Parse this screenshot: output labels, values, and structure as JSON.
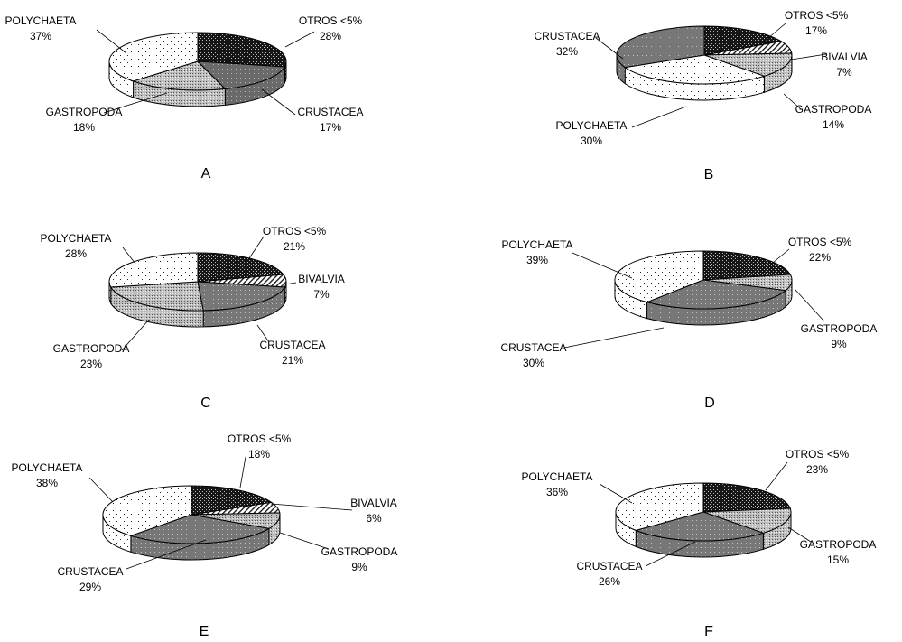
{
  "chart_data": [
    {
      "panel": "A",
      "type": "pie",
      "slices": [
        {
          "name": "OTROS <5%",
          "value": 28,
          "value_label": "28%",
          "pattern": "checker"
        },
        {
          "name": "CRUSTACEA",
          "value": 17,
          "value_label": "17%",
          "pattern": "dots_dark"
        },
        {
          "name": "GASTROPODA",
          "value": 18,
          "value_label": "18%",
          "pattern": "fine"
        },
        {
          "name": "POLYCHAETA",
          "value": 37,
          "value_label": "37%",
          "pattern": "dots_white"
        }
      ]
    },
    {
      "panel": "B",
      "type": "pie",
      "slices": [
        {
          "name": "OTROS <5%",
          "value": 17,
          "value_label": "17%",
          "pattern": "checker"
        },
        {
          "name": "BIVALVIA",
          "value": 7,
          "value_label": "7%",
          "pattern": "hatch"
        },
        {
          "name": "GASTROPODA",
          "value": 14,
          "value_label": "14%",
          "pattern": "fine"
        },
        {
          "name": "POLYCHAETA",
          "value": 30,
          "value_label": "30%",
          "pattern": "dots_white"
        },
        {
          "name": "CRUSTACEA",
          "value": 32,
          "value_label": "32%",
          "pattern": "dots_gray"
        }
      ]
    },
    {
      "panel": "C",
      "type": "pie",
      "slices": [
        {
          "name": "OTROS <5%",
          "value": 21,
          "value_label": "21%",
          "pattern": "checker"
        },
        {
          "name": "BIVALVIA",
          "value": 7,
          "value_label": "7%",
          "pattern": "hatch"
        },
        {
          "name": "CRUSTACEA",
          "value": 21,
          "value_label": "21%",
          "pattern": "dots_gray"
        },
        {
          "name": "GASTROPODA",
          "value": 23,
          "value_label": "23%",
          "pattern": "fine"
        },
        {
          "name": "POLYCHAETA",
          "value": 28,
          "value_label": "28%",
          "pattern": "dots_white"
        }
      ]
    },
    {
      "panel": "D",
      "type": "pie",
      "slices": [
        {
          "name": "OTROS <5%",
          "value": 22,
          "value_label": "22%",
          "pattern": "checker"
        },
        {
          "name": "GASTROPODA",
          "value": 9,
          "value_label": "9%",
          "pattern": "fine"
        },
        {
          "name": "CRUSTACEA",
          "value": 30,
          "value_label": "30%",
          "pattern": "dots_gray"
        },
        {
          "name": "POLYCHAETA",
          "value": 39,
          "value_label": "39%",
          "pattern": "dots_white"
        }
      ]
    },
    {
      "panel": "E",
      "type": "pie",
      "slices": [
        {
          "name": "OTROS <5%",
          "value": 18,
          "value_label": "18%",
          "pattern": "checker"
        },
        {
          "name": "BIVALVIA",
          "value": 6,
          "value_label": "6%",
          "pattern": "hatch"
        },
        {
          "name": "GASTROPODA",
          "value": 9,
          "value_label": "9%",
          "pattern": "fine"
        },
        {
          "name": "CRUSTACEA",
          "value": 29,
          "value_label": "29%",
          "pattern": "dots_gray"
        },
        {
          "name": "POLYCHAETA",
          "value": 38,
          "value_label": "38%",
          "pattern": "dots_white"
        }
      ]
    },
    {
      "panel": "F",
      "type": "pie",
      "slices": [
        {
          "name": "OTROS <5%",
          "value": 23,
          "value_label": "23%",
          "pattern": "checker"
        },
        {
          "name": "GASTROPODA",
          "value": 15,
          "value_label": "15%",
          "pattern": "fine"
        },
        {
          "name": "CRUSTACEA",
          "value": 26,
          "value_label": "26%",
          "pattern": "dots_gray"
        },
        {
          "name": "POLYCHAETA",
          "value": 36,
          "value_label": "36%",
          "pattern": "dots_white"
        }
      ]
    }
  ]
}
